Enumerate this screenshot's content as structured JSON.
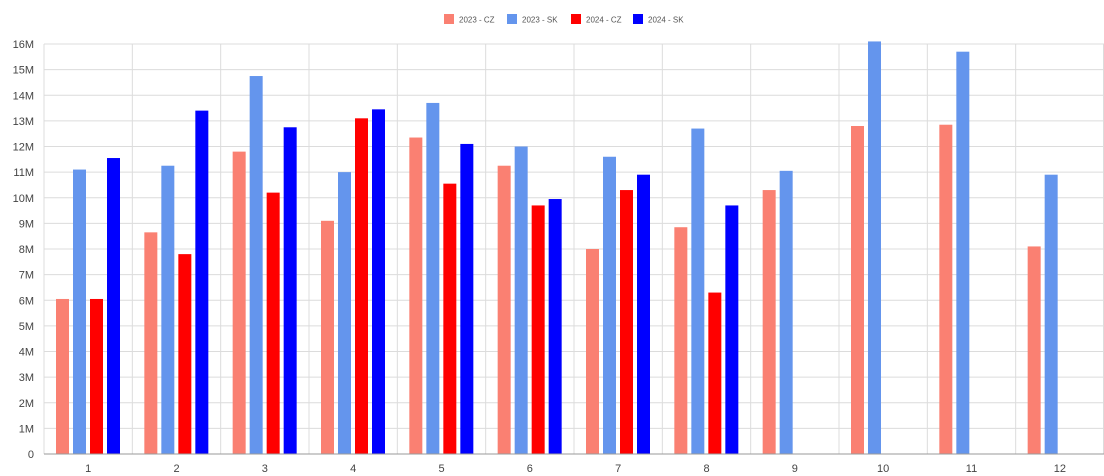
{
  "chart_data": {
    "type": "bar",
    "title": "",
    "xlabel": "",
    "ylabel": "",
    "categories": [
      "1",
      "2",
      "3",
      "4",
      "5",
      "6",
      "7",
      "8",
      "9",
      "10",
      "11",
      "12"
    ],
    "series": [
      {
        "name": "2023 - CZ",
        "color": "#fa8072",
        "values": [
          6.05,
          8.65,
          11.8,
          9.1,
          12.35,
          11.25,
          8.0,
          8.85,
          10.3,
          12.8,
          12.85,
          8.1
        ]
      },
      {
        "name": "2023 - SK",
        "color": "#6495ed",
        "values": [
          11.1,
          11.25,
          14.75,
          11.0,
          13.7,
          12.0,
          11.6,
          12.7,
          11.05,
          16.1,
          15.7,
          10.9
        ]
      },
      {
        "name": "2024 - CZ",
        "color": "#ff0000",
        "values": [
          6.05,
          7.8,
          10.2,
          13.1,
          10.55,
          9.7,
          10.3,
          6.3,
          null,
          null,
          null,
          null
        ]
      },
      {
        "name": "2024 - SK",
        "color": "#0000ff",
        "values": [
          11.55,
          13.4,
          12.75,
          13.45,
          12.1,
          9.95,
          10.9,
          9.7,
          null,
          null,
          null,
          null
        ]
      }
    ],
    "ylim": [
      0,
      16
    ],
    "y_ticks": [
      {
        "value": 0,
        "label": "0"
      },
      {
        "value": 1,
        "label": "1M"
      },
      {
        "value": 2,
        "label": "2M"
      },
      {
        "value": 3,
        "label": "3M"
      },
      {
        "value": 4,
        "label": "4M"
      },
      {
        "value": 5,
        "label": "5M"
      },
      {
        "value": 6,
        "label": "6M"
      },
      {
        "value": 7,
        "label": "7M"
      },
      {
        "value": 8,
        "label": "8M"
      },
      {
        "value": 9,
        "label": "9M"
      },
      {
        "value": 10,
        "label": "10M"
      },
      {
        "value": 11,
        "label": "11M"
      },
      {
        "value": 12,
        "label": "12M"
      },
      {
        "value": 13,
        "label": "13M"
      },
      {
        "value": 14,
        "label": "14M"
      },
      {
        "value": 15,
        "label": "15M"
      },
      {
        "value": 16,
        "label": "16M"
      }
    ],
    "grid": true,
    "legend_position": "top-center"
  }
}
